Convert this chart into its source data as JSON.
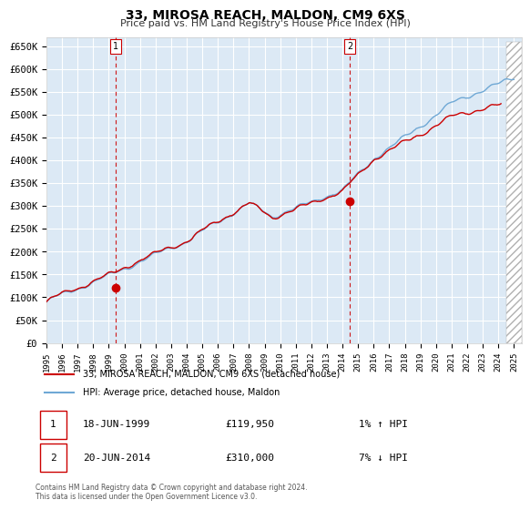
{
  "title": "33, MIROSA REACH, MALDON, CM9 6XS",
  "subtitle": "Price paid vs. HM Land Registry's House Price Index (HPI)",
  "hpi_color": "#6fa8d5",
  "price_color": "#cc0000",
  "plot_bg": "#dce9f5",
  "ylim": [
    0,
    670000
  ],
  "yticks": [
    0,
    50000,
    100000,
    150000,
    200000,
    250000,
    300000,
    350000,
    400000,
    450000,
    500000,
    550000,
    600000,
    650000
  ],
  "xlim_start": 1995.0,
  "xlim_end": 2025.5,
  "marker1_x": 1999.46,
  "marker1_y": 119950,
  "marker2_x": 2014.46,
  "marker2_y": 310000,
  "vline1_x": 1999.46,
  "vline2_x": 2014.46,
  "legend_label1": "33, MIROSA REACH, MALDON, CM9 6XS (detached house)",
  "legend_label2": "HPI: Average price, detached house, Maldon",
  "table_row1": [
    "1",
    "18-JUN-1999",
    "£119,950",
    "1% ↑ HPI"
  ],
  "table_row2": [
    "2",
    "20-JUN-2014",
    "£310,000",
    "7% ↓ HPI"
  ],
  "footnote": "Contains HM Land Registry data © Crown copyright and database right 2024.\nThis data is licensed under the Open Government Licence v3.0.",
  "hatch_color": "#b0b0b0"
}
